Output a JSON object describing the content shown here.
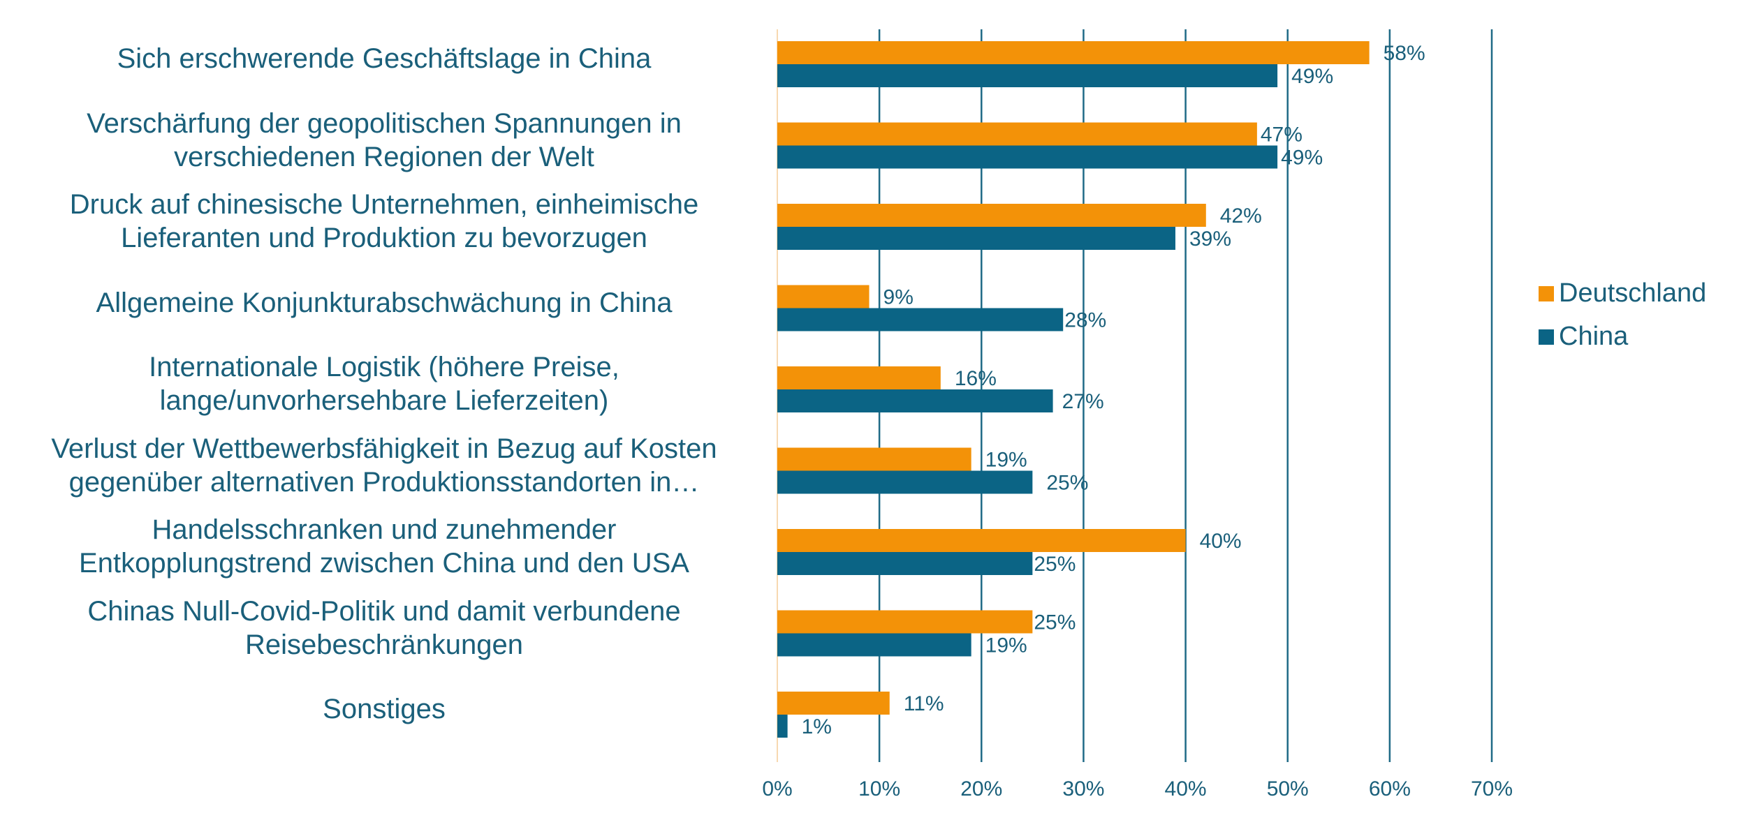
{
  "chart_data": {
    "type": "bar",
    "orientation": "horizontal",
    "categories": [
      [
        "Sich erschwerende Geschäftslage in China"
      ],
      [
        "Verschärfung der geopolitischen Spannungen in",
        "verschiedenen Regionen der Welt"
      ],
      [
        "Druck auf chinesische Unternehmen, einheimische",
        "Lieferanten und Produktion zu bevorzugen"
      ],
      [
        "Allgemeine Konjunkturabschwächung in China"
      ],
      [
        "Internationale Logistik (höhere Preise,",
        "lange/unvorhersehbare Lieferzeiten)"
      ],
      [
        "Verlust der Wettbewerbsfähigkeit in Bezug auf Kosten",
        "gegenüber alternativen Produktionsstandorten in…"
      ],
      [
        "Handelsschranken und zunehmender",
        "Entkopplungstrend zwischen China und den USA"
      ],
      [
        "Chinas Null-Covid-Politik und damit verbundene",
        "Reisebeschränkungen"
      ],
      [
        "Sonstiges"
      ]
    ],
    "series": [
      {
        "name": "Deutschland",
        "color": "#f39208",
        "values": [
          58,
          47,
          42,
          9,
          16,
          19,
          40,
          25,
          11
        ],
        "labels": [
          "58%",
          "47%",
          "42%",
          "9%",
          "16%",
          "19%",
          "40%",
          "25%",
          "11%"
        ]
      },
      {
        "name": "China",
        "color": "#0b6485",
        "values": [
          49,
          49,
          39,
          28,
          27,
          25,
          25,
          19,
          1
        ],
        "labels": [
          "49%",
          "49%",
          "39%",
          "28%",
          "27%",
          "25%",
          "25%",
          "19%",
          "1%"
        ]
      }
    ],
    "xlim": [
      0,
      70
    ],
    "xticks": [
      0,
      10,
      20,
      30,
      40,
      50,
      60,
      70
    ],
    "xtick_labels": [
      "0%",
      "10%",
      "20%",
      "30%",
      "40%",
      "50%",
      "60%",
      "70%"
    ],
    "grid": "vertical",
    "legend": "right",
    "title": "",
    "xlabel": "",
    "ylabel": ""
  }
}
